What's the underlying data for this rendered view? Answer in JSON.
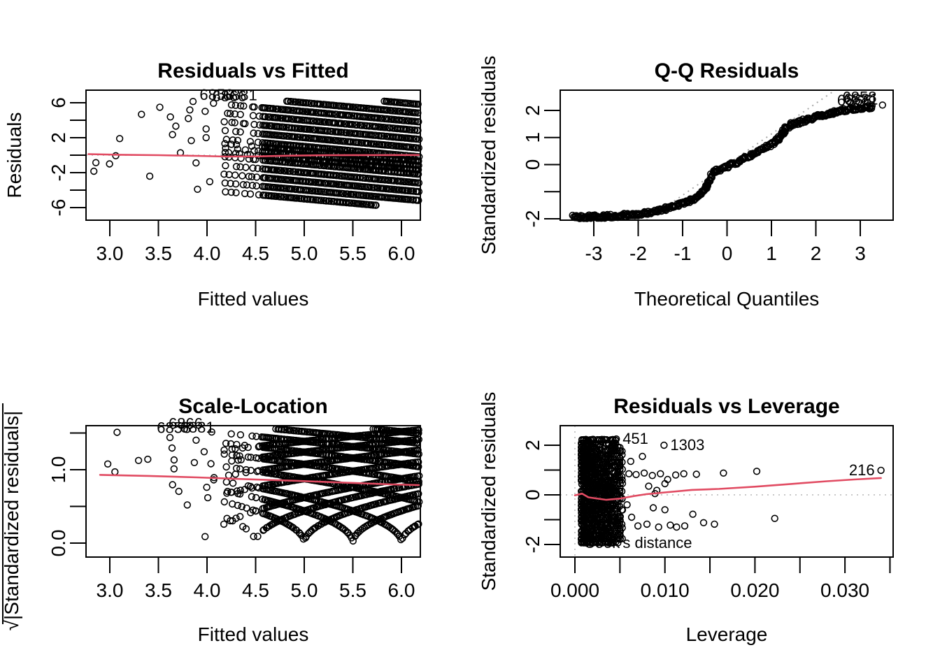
{
  "figure": {
    "background": "#ffffff",
    "description": "R lm diagnostic plots, 2x2 grid"
  },
  "colors": {
    "points": "#000000",
    "smooth_line": "#E14B62",
    "zero_line_dotted": "#C8C8C8",
    "qq_reference_dotted": "#A8A8A8",
    "annotation_gray": "#9B9B9B"
  },
  "chart_data": [
    {
      "id": "residuals-vs-fitted",
      "type": "scatter",
      "title": "Residuals vs Fitted",
      "xlabel": "Fitted values",
      "ylabel": "Residuals",
      "xlim": [
        2.76,
        6.19
      ],
      "ylim": [
        -7.4,
        7.4
      ],
      "x_ticks": [
        3.0,
        3.5,
        4.0,
        4.5,
        5.0,
        5.5,
        6.0
      ],
      "x_tick_labels": [
        "3.0",
        "3.5",
        "4.0",
        "4.5",
        "5.0",
        "5.5",
        "6.0"
      ],
      "y_ticks": [
        6,
        4,
        2,
        0,
        -2,
        -4,
        -6
      ],
      "y_tick_labels": [
        "6",
        "",
        "2",
        "",
        "-2",
        "",
        "-6"
      ],
      "zero_line_y": 0,
      "bands": {
        "comment": "integer-count data: residual = c - fitted, slope -1 diagonal bands, dense for fitted>4.5",
        "intercepts": [
          0,
          1,
          2,
          3,
          4,
          4.5,
          5,
          5.5,
          6,
          7,
          8,
          9,
          10,
          11,
          12
        ],
        "resid_clip": [
          -5.75,
          6.18
        ],
        "seed": 42
      },
      "smooth_line": [
        [
          2.78,
          0.12
        ],
        [
          3.1,
          0.05
        ],
        [
          3.5,
          0.0
        ],
        [
          3.9,
          -0.08
        ],
        [
          4.2,
          -0.16
        ],
        [
          4.5,
          -0.14
        ],
        [
          4.8,
          -0.06
        ],
        [
          5.2,
          -0.01
        ],
        [
          5.6,
          0.01
        ],
        [
          6.0,
          0.02
        ],
        [
          6.18,
          0.02
        ]
      ],
      "point_labels": [
        {
          "text": "6858",
          "x": 4.1,
          "y": 6.32
        },
        {
          "text": "6866",
          "x": 4.23,
          "y": 6.15
        },
        {
          "text": "6881",
          "x": 4.34,
          "y": 6.3
        }
      ]
    },
    {
      "id": "qq-residuals",
      "type": "scatter",
      "title": "Q-Q Residuals",
      "xlabel": "Theoretical Quantiles",
      "ylabel": "Standardized residuals",
      "xlim": [
        -3.75,
        3.74
      ],
      "ylim": [
        -2.05,
        2.75
      ],
      "x_ticks": [
        -3,
        -2,
        -1,
        0,
        1,
        2,
        3
      ],
      "x_tick_labels": [
        "-3",
        "-2",
        "-1",
        "0",
        "1",
        "2",
        "3"
      ],
      "y_ticks": [
        2,
        1,
        0,
        -1,
        -2
      ],
      "y_tick_labels": [
        "2",
        "1",
        "0",
        "",
        "-2"
      ],
      "reference_line": {
        "slope": 1.13,
        "intercept": 0,
        "style": "dotted"
      },
      "curve": [
        [
          -3.45,
          -1.93
        ],
        [
          -3.2,
          -1.93
        ],
        [
          -3.0,
          -1.92
        ],
        [
          -2.8,
          -1.92
        ],
        [
          -2.6,
          -1.9
        ],
        [
          -2.4,
          -1.88
        ],
        [
          -2.2,
          -1.86
        ],
        [
          -2.0,
          -1.82
        ],
        [
          -1.8,
          -1.77
        ],
        [
          -1.6,
          -1.71
        ],
        [
          -1.4,
          -1.63
        ],
        [
          -1.2,
          -1.54
        ],
        [
          -1.0,
          -1.44
        ],
        [
          -0.85,
          -1.35
        ],
        [
          -0.7,
          -1.22
        ],
        [
          -0.6,
          -1.08
        ],
        [
          -0.5,
          -0.92
        ],
        [
          -0.45,
          -0.78
        ],
        [
          -0.4,
          -0.58
        ],
        [
          -0.35,
          -0.38
        ],
        [
          -0.28,
          -0.25
        ],
        [
          -0.15,
          -0.17
        ],
        [
          0.0,
          -0.07
        ],
        [
          0.2,
          0.08
        ],
        [
          0.4,
          0.24
        ],
        [
          0.6,
          0.42
        ],
        [
          0.8,
          0.58
        ],
        [
          1.0,
          0.75
        ],
        [
          1.1,
          0.86
        ],
        [
          1.18,
          1.0
        ],
        [
          1.26,
          1.18
        ],
        [
          1.32,
          1.34
        ],
        [
          1.4,
          1.45
        ],
        [
          1.55,
          1.53
        ],
        [
          1.7,
          1.6
        ],
        [
          1.9,
          1.7
        ],
        [
          2.1,
          1.8
        ],
        [
          2.3,
          1.89
        ],
        [
          2.5,
          1.97
        ],
        [
          2.7,
          2.03
        ],
        [
          2.9,
          2.08
        ],
        [
          3.1,
          2.11
        ],
        [
          3.3,
          2.13
        ]
      ],
      "tail_points_low": [
        [
          -3.45,
          -1.93
        ],
        [
          -3.22,
          -1.94
        ],
        [
          -3.1,
          -1.92
        ],
        [
          -3.0,
          -1.94
        ],
        [
          -2.92,
          -1.91
        ],
        [
          -2.84,
          -1.93
        ],
        [
          -2.76,
          -1.9
        ],
        [
          -2.7,
          -1.93
        ],
        [
          -2.64,
          -1.91
        ],
        [
          -2.58,
          -1.93
        ]
      ],
      "tail_points_high": [
        [
          3.5,
          2.2
        ]
      ],
      "point_labels": [
        {
          "text": "6858",
          "x": 3.37,
          "y": 2.3
        },
        {
          "text": "6866",
          "x": 3.25,
          "y": 2.18
        },
        {
          "text": "6881",
          "x": 3.4,
          "y": 2.22
        }
      ],
      "seed": 7
    },
    {
      "id": "scale-location",
      "type": "scatter",
      "title": "Scale-Location",
      "xlabel": "Fitted values",
      "ylabel": "√|Standardized residuals|",
      "xlim": [
        2.76,
        6.19
      ],
      "ylim": [
        -0.19,
        1.6
      ],
      "x_ticks": [
        3.0,
        3.5,
        4.0,
        4.5,
        5.0,
        5.5,
        6.0
      ],
      "x_tick_labels": [
        "3.0",
        "3.5",
        "4.0",
        "4.5",
        "5.0",
        "5.5",
        "6.0"
      ],
      "y_ticks": [
        1.5,
        1.0,
        0.5,
        0.0
      ],
      "y_tick_labels": [
        "",
        "1.0",
        "",
        "0.0"
      ],
      "bands": {
        "comment": "y = sqrt(|c - fitted| / sigma), V dips near fitted = 5.0, 5.5, 6.0",
        "intercepts": [
          0,
          1,
          2,
          3,
          4,
          4.5,
          5,
          5.5,
          6,
          7,
          8,
          9,
          10,
          11,
          12
        ],
        "sigma": 2.6,
        "v_clip": 1.56,
        "seed": 99
      },
      "smooth_line": [
        [
          2.9,
          0.93
        ],
        [
          3.4,
          0.915
        ],
        [
          3.9,
          0.895
        ],
        [
          4.4,
          0.87
        ],
        [
          4.9,
          0.85
        ],
        [
          5.4,
          0.825
        ],
        [
          5.9,
          0.8
        ],
        [
          6.18,
          0.79
        ]
      ],
      "point_labels": [
        {
          "text": "6858",
          "x": 3.66,
          "y": 1.5
        },
        {
          "text": "6866",
          "x": 3.78,
          "y": 1.555
        },
        {
          "text": "6881",
          "x": 3.9,
          "y": 1.505
        }
      ]
    },
    {
      "id": "residuals-vs-leverage",
      "type": "scatter",
      "title": "Residuals vs Leverage",
      "xlabel": "Leverage",
      "ylabel": "Standardized residuals",
      "xlim": [
        -0.0016,
        0.0354
      ],
      "ylim": [
        -2.5,
        2.79
      ],
      "x_ticks": [
        0.0,
        0.005,
        0.01,
        0.015,
        0.02,
        0.025,
        0.03,
        0.035
      ],
      "x_tick_labels": [
        "0.000",
        "",
        "0.010",
        "",
        "0.020",
        "",
        "0.030",
        ""
      ],
      "y_ticks": [
        2,
        1,
        0,
        -1,
        -2
      ],
      "y_tick_labels": [
        "2",
        "",
        "0",
        "",
        "-2"
      ],
      "zero_line_y": 0,
      "zero_line_x": 0,
      "cluster": {
        "comment": "dense banded cluster",
        "x_range": [
          0.0007,
          0.0052
        ],
        "s_range": [
          -2.02,
          2.27
        ],
        "n": 1300,
        "band_step": 0.1476,
        "seed": 5
      },
      "outliers": [
        [
          0.006,
          0.85
        ],
        [
          0.0068,
          0.82
        ],
        [
          0.0077,
          0.88
        ],
        [
          0.0086,
          0.78
        ],
        [
          0.0095,
          0.85
        ],
        [
          0.0103,
          0.62
        ],
        [
          0.0112,
          0.8
        ],
        [
          0.0121,
          0.85
        ],
        [
          0.0135,
          0.83
        ],
        [
          0.0165,
          0.88
        ],
        [
          0.0202,
          0.95
        ],
        [
          0.0062,
          1.35
        ],
        [
          0.0075,
          1.55
        ],
        [
          0.0082,
          0.35
        ],
        [
          0.0091,
          0.18
        ],
        [
          0.01,
          0.45
        ],
        [
          0.0089,
          0.05
        ],
        [
          0.0058,
          -0.4
        ],
        [
          0.0063,
          -0.9
        ],
        [
          0.007,
          -1.25
        ],
        [
          0.008,
          -1.18
        ],
        [
          0.0087,
          -0.52
        ],
        [
          0.0093,
          -1.3
        ],
        [
          0.01,
          -0.6
        ],
        [
          0.0106,
          -1.22
        ],
        [
          0.0113,
          -1.3
        ],
        [
          0.0122,
          -1.25
        ],
        [
          0.0131,
          -0.78
        ],
        [
          0.0143,
          -1.12
        ],
        [
          0.0155,
          -1.18
        ],
        [
          0.0222,
          -0.95
        ]
      ],
      "labeled_points": [
        {
          "text": "451",
          "x": 0.0046,
          "y": 2.25,
          "side": "right"
        },
        {
          "text": "1303",
          "x": 0.0099,
          "y": 2.0,
          "side": "right"
        },
        {
          "text": "216",
          "x": 0.034,
          "y": 0.99,
          "side": "left"
        }
      ],
      "smooth_line": [
        [
          0.0,
          -0.02
        ],
        [
          0.0008,
          0.05
        ],
        [
          0.0015,
          -0.1
        ],
        [
          0.0035,
          -0.2
        ],
        [
          0.005,
          -0.15
        ],
        [
          0.0065,
          -0.05
        ],
        [
          0.008,
          0.03
        ],
        [
          0.01,
          0.1
        ],
        [
          0.013,
          0.2
        ],
        [
          0.016,
          0.24
        ],
        [
          0.02,
          0.33
        ],
        [
          0.024,
          0.44
        ],
        [
          0.028,
          0.55
        ],
        [
          0.031,
          0.62
        ],
        [
          0.034,
          0.68
        ]
      ],
      "annotation": {
        "text": "Cook's distance",
        "x": 0.001,
        "y": -2.14
      }
    }
  ]
}
